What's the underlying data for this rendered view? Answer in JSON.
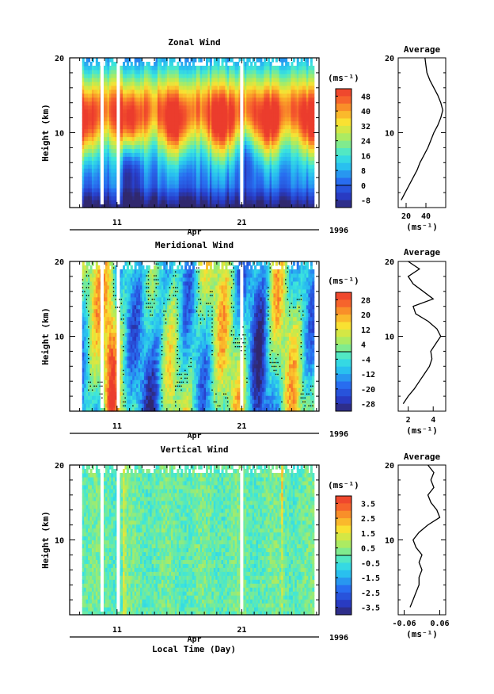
{
  "figure": {
    "time_axis_title": "Local Time (Day)",
    "month_label": "Apr",
    "year_label": "1996",
    "height_axis_title": "Height (km)",
    "unit_label": "(ms⁻¹)",
    "profile_title": "Average"
  },
  "chart_data": [
    {
      "type": "heatmap",
      "title": "Zonal Wind",
      "ylabel": "Height (km)",
      "ylim": [
        0,
        20
      ],
      "y_ticks": [
        "10",
        "20"
      ],
      "x_ticks": [
        "11",
        "21"
      ],
      "x_tick_days": [
        11,
        21
      ],
      "x_range_days": [
        7.2,
        27.2
      ],
      "data_range_days": [
        8.2,
        26.8
      ],
      "colorbar": {
        "label": "(ms⁻¹)",
        "ticks": [
          "48",
          "40",
          "32",
          "24",
          "16",
          "8",
          "0",
          "-8"
        ],
        "levels": [
          48,
          40,
          32,
          24,
          16,
          8,
          0,
          -8
        ],
        "min": -12,
        "max": 52
      },
      "field_description": "jet core above ~45 ms⁻¹ between 7 and 17 km, weak near surface",
      "data_gaps_days": [
        9.8,
        11.1,
        21.0
      ]
    },
    {
      "type": "heatmap",
      "title": "Meridional Wind",
      "ylabel": "Height (km)",
      "ylim": [
        0,
        20
      ],
      "y_ticks": [
        "10",
        "20"
      ],
      "x_ticks": [
        "11",
        "21"
      ],
      "x_tick_days": [
        11,
        21
      ],
      "x_range_days": [
        7.2,
        27.2
      ],
      "data_range_days": [
        8.2,
        26.8
      ],
      "colorbar": {
        "label": "(ms⁻¹)",
        "ticks": [
          "28",
          "20",
          "12",
          "4",
          "-4",
          "-12",
          "-20",
          "-28"
        ],
        "levels": [
          28,
          20,
          12,
          4,
          -4,
          -12,
          -20,
          -28
        ],
        "min": -32,
        "max": 32
      },
      "zero_contour": true,
      "data_gaps_days": [
        9.8,
        11.1,
        21.0
      ]
    },
    {
      "type": "heatmap",
      "title": "Vertical Wind",
      "ylabel": "Height (km)",
      "ylim": [
        0,
        20
      ],
      "y_ticks": [
        "10",
        "20"
      ],
      "x_ticks": [
        "11",
        "21"
      ],
      "x_tick_days": [
        11,
        21
      ],
      "x_range_days": [
        7.2,
        27.2
      ],
      "data_range_days": [
        8.2,
        26.8
      ],
      "colorbar": {
        "label": "(ms⁻¹)",
        "ticks": [
          "3.5",
          "2.5",
          "1.5",
          "0.5",
          "-0.5",
          "-1.5",
          "-2.5",
          "-3.5"
        ],
        "levels": [
          3.5,
          2.5,
          1.5,
          0.5,
          -0.5,
          -1.5,
          -2.5,
          -3.5
        ],
        "min": -4,
        "max": 4
      },
      "data_gaps_days": [
        9.8,
        11.1,
        21.0
      ]
    },
    {
      "type": "line",
      "title": "Average",
      "xlabel": "(ms⁻¹)",
      "xlim": [
        12,
        60
      ],
      "x_ticks": [
        "20",
        "40"
      ],
      "x_tick_values": [
        20,
        40
      ],
      "ylim": [
        0,
        20
      ],
      "y_ticks": [
        "10",
        "20"
      ],
      "series": [
        {
          "y": [
            1,
            2,
            3,
            4,
            5,
            6,
            7,
            8,
            9,
            10,
            11,
            12,
            13,
            14,
            15,
            16,
            17,
            18,
            19,
            20
          ],
          "x": [
            15,
            19,
            23,
            27,
            31,
            34,
            38,
            42,
            45,
            48,
            52,
            55,
            57,
            55,
            52,
            48,
            44,
            41,
            40,
            39
          ]
        }
      ]
    },
    {
      "type": "line",
      "title": "Average",
      "xlabel": "(ms⁻¹)",
      "xlim": [
        1.2,
        5.0
      ],
      "x_ticks": [
        "2",
        "4"
      ],
      "x_tick_values": [
        2,
        4
      ],
      "ylim": [
        0,
        20
      ],
      "y_ticks": [
        "10",
        "20"
      ],
      "series": [
        {
          "y": [
            1,
            2,
            3,
            4,
            5,
            6,
            7,
            8,
            9,
            10,
            11,
            12,
            13,
            14,
            15,
            16,
            17,
            18,
            19,
            20
          ],
          "x": [
            1.6,
            2.0,
            2.5,
            2.9,
            3.3,
            3.7,
            3.9,
            3.8,
            4.2,
            4.6,
            4.3,
            3.6,
            2.6,
            2.4,
            4.0,
            3.2,
            2.4,
            2.0,
            2.9,
            2.0
          ]
        }
      ]
    },
    {
      "type": "line",
      "title": "Average",
      "xlabel": "(ms⁻¹)",
      "xlim": [
        -0.08,
        0.08
      ],
      "x_ticks": [
        "-0.06",
        "0.06"
      ],
      "x_tick_values": [
        -0.06,
        0.06
      ],
      "ylim": [
        0,
        20
      ],
      "y_ticks": [
        "10",
        "20"
      ],
      "series": [
        {
          "y": [
            1,
            2,
            3,
            4,
            5,
            6,
            7,
            8,
            9,
            10,
            11,
            12,
            13,
            14,
            15,
            16,
            17,
            18,
            19,
            20
          ],
          "x": [
            -0.04,
            -0.03,
            -0.02,
            -0.01,
            -0.01,
            0.0,
            -0.01,
            0.0,
            -0.02,
            -0.03,
            -0.01,
            0.02,
            0.06,
            0.05,
            0.03,
            0.02,
            0.04,
            0.03,
            0.04,
            0.02
          ]
        }
      ]
    }
  ]
}
